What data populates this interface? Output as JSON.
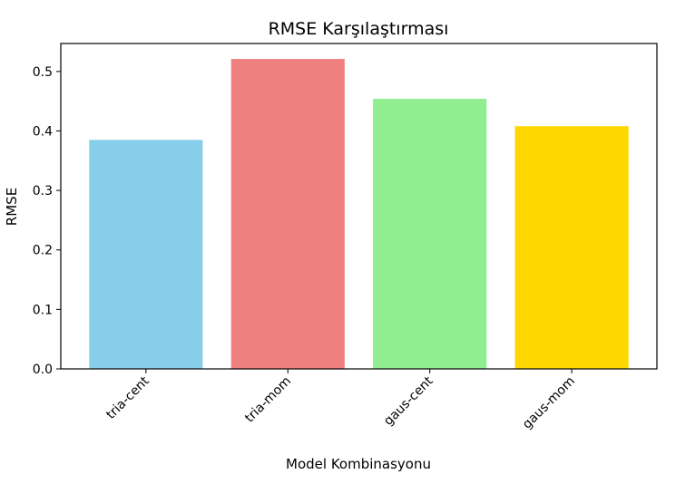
{
  "chart_data": {
    "type": "bar",
    "title": "RMSE Karşılaştırması",
    "xlabel": "Model Kombinasyonu",
    "ylabel": "RMSE",
    "categories": [
      "tria-cent",
      "tria-mom",
      "gaus-cent",
      "gaus-mom"
    ],
    "values": [
      0.385,
      0.521,
      0.454,
      0.408
    ],
    "colors": [
      "#87ceeb",
      "#f08080",
      "#90ee90",
      "#ffd700"
    ],
    "ylim": [
      0,
      0.547
    ],
    "yticks": [
      0.0,
      0.1,
      0.2,
      0.3,
      0.4,
      0.5
    ],
    "ytick_labels": [
      "0.0",
      "0.1",
      "0.2",
      "0.3",
      "0.4",
      "0.5"
    ],
    "xtick_rotation": "45 degrees",
    "grid": false,
    "legend": false
  }
}
